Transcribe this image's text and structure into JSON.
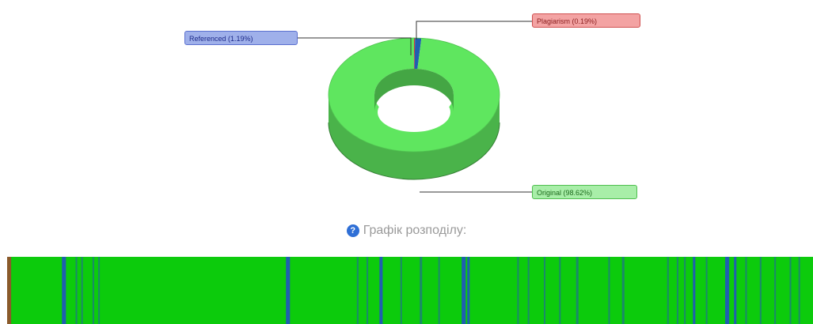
{
  "chart_data": [
    {
      "type": "pie",
      "variant": "3d-donut",
      "slices": [
        {
          "label": "Referenced (1.19%)",
          "value": 1.19,
          "color": "#1f5fb0",
          "label_bg": "#9fb0ea",
          "label_border": "#5a6fcf",
          "label_text": "#1d2a8a"
        },
        {
          "label": "Plagiarism (0.19%)",
          "value": 0.19,
          "color": "#d23a3a",
          "label_bg": "#f3a3a3",
          "label_border": "#d05050",
          "label_text": "#8a1d1d"
        },
        {
          "label": "Original (98.62%)",
          "value": 98.62,
          "color": "#5fe65f",
          "label_bg": "#a8eea8",
          "label_border": "#4fbf4f",
          "label_text": "#1d6a1d"
        }
      ]
    },
    {
      "type": "heatmap",
      "variant": "distribution-strip",
      "title": "Графік розподілу:",
      "base_color": "#0ccb0c",
      "stripe_color_primary": "#1f5fb0",
      "stripe_color_secondary": "#1a8a6a",
      "start_color": "#8a5a2a",
      "segments": [
        {
          "start": 0.0,
          "end": 0.5,
          "kind": "start"
        },
        {
          "start": 6.8,
          "end": 7.3,
          "kind": "primary"
        },
        {
          "start": 8.5,
          "end": 8.7,
          "kind": "secondary"
        },
        {
          "start": 9.2,
          "end": 9.4,
          "kind": "secondary"
        },
        {
          "start": 10.6,
          "end": 10.8,
          "kind": "secondary"
        },
        {
          "start": 11.3,
          "end": 11.5,
          "kind": "secondary"
        },
        {
          "start": 34.6,
          "end": 35.1,
          "kind": "primary"
        },
        {
          "start": 43.4,
          "end": 43.6,
          "kind": "secondary"
        },
        {
          "start": 44.6,
          "end": 44.8,
          "kind": "secondary"
        },
        {
          "start": 46.2,
          "end": 46.6,
          "kind": "primary"
        },
        {
          "start": 48.8,
          "end": 49.0,
          "kind": "secondary"
        },
        {
          "start": 51.2,
          "end": 51.5,
          "kind": "secondary"
        },
        {
          "start": 53.5,
          "end": 53.7,
          "kind": "secondary"
        },
        {
          "start": 56.4,
          "end": 56.9,
          "kind": "primary"
        },
        {
          "start": 57.1,
          "end": 57.4,
          "kind": "primary"
        },
        {
          "start": 63.3,
          "end": 63.5,
          "kind": "secondary"
        },
        {
          "start": 64.6,
          "end": 64.8,
          "kind": "secondary"
        },
        {
          "start": 66.6,
          "end": 66.8,
          "kind": "secondary"
        },
        {
          "start": 68.5,
          "end": 68.7,
          "kind": "secondary"
        },
        {
          "start": 70.6,
          "end": 70.9,
          "kind": "secondary"
        },
        {
          "start": 74.6,
          "end": 74.8,
          "kind": "secondary"
        },
        {
          "start": 76.3,
          "end": 76.6,
          "kind": "secondary"
        },
        {
          "start": 81.9,
          "end": 82.1,
          "kind": "secondary"
        },
        {
          "start": 83.1,
          "end": 83.3,
          "kind": "secondary"
        },
        {
          "start": 84.0,
          "end": 84.2,
          "kind": "secondary"
        },
        {
          "start": 85.1,
          "end": 85.4,
          "kind": "primary"
        },
        {
          "start": 86.7,
          "end": 86.9,
          "kind": "secondary"
        },
        {
          "start": 89.1,
          "end": 89.6,
          "kind": "primary"
        },
        {
          "start": 90.2,
          "end": 90.5,
          "kind": "primary"
        },
        {
          "start": 91.6,
          "end": 91.8,
          "kind": "secondary"
        },
        {
          "start": 93.4,
          "end": 93.6,
          "kind": "secondary"
        },
        {
          "start": 95.2,
          "end": 95.4,
          "kind": "secondary"
        },
        {
          "start": 97.1,
          "end": 97.3,
          "kind": "secondary"
        },
        {
          "start": 98.2,
          "end": 98.4,
          "kind": "secondary"
        }
      ]
    }
  ],
  "help_icon": "question-circle-icon"
}
